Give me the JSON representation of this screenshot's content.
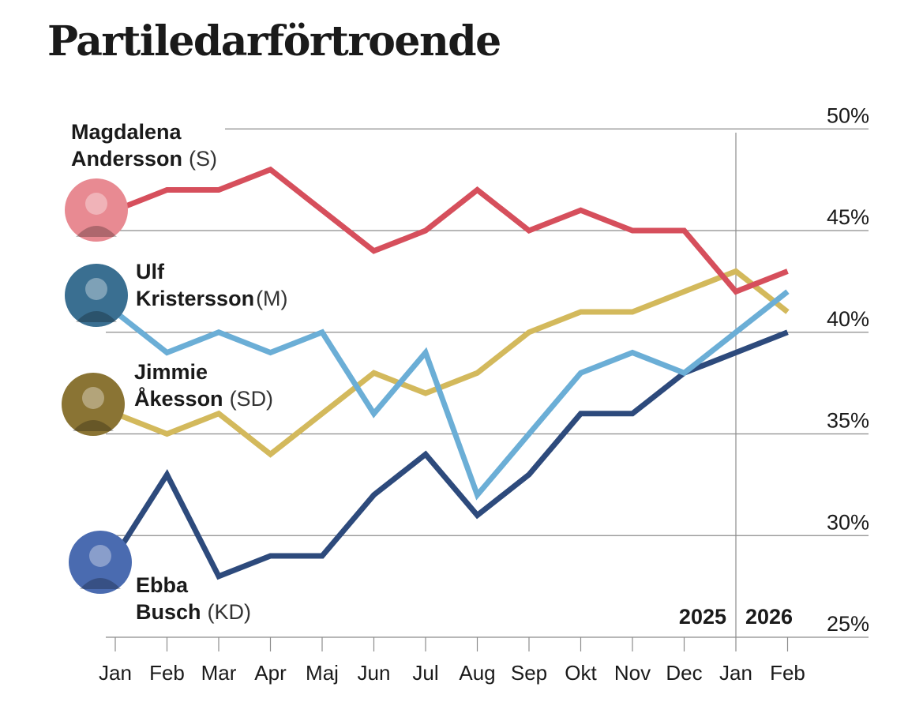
{
  "chart_data": {
    "type": "line",
    "title": "Partiledarförtroende",
    "x": [
      "Jan",
      "Feb",
      "Mar",
      "Apr",
      "Maj",
      "Jun",
      "Jul",
      "Aug",
      "Sep",
      "Okt",
      "Nov",
      "Dec",
      "Jan",
      "Feb"
    ],
    "years": [
      "2025",
      "2026"
    ],
    "yticks": [
      "25%",
      "30%",
      "35%",
      "40%",
      "45%",
      "50%"
    ],
    "ylim": [
      25,
      50
    ],
    "grid": true,
    "series": [
      {
        "name_line1": "Magdalena",
        "name_line2": "Andersson",
        "party": "(S)",
        "color": "#d64f5c",
        "portrait_color": "#e88a92",
        "values": [
          46,
          47,
          47,
          48,
          46,
          44,
          45,
          47,
          45,
          46,
          45,
          45,
          42,
          43
        ]
      },
      {
        "name_line1": "Ulf",
        "name_line2": "Kristersson",
        "party": "(M)",
        "color": "#6baed6",
        "portrait_color": "#3a6f91",
        "values": [
          41,
          39,
          40,
          39,
          40,
          36,
          39,
          32,
          35,
          38,
          39,
          38,
          40,
          42
        ]
      },
      {
        "name_line1": "Jimmie",
        "name_line2": "Åkesson",
        "party": "(SD)",
        "color": "#d3b95c",
        "portrait_color": "#8a7434",
        "values": [
          36,
          35,
          36,
          34,
          36,
          38,
          37,
          38,
          40,
          41,
          41,
          42,
          43,
          41
        ]
      },
      {
        "name_line1": "Ebba",
        "name_line2": "Busch",
        "party": "(KD)",
        "color": "#2d4a7c",
        "portrait_color": "#4a6bb0",
        "values": [
          29,
          33,
          28,
          29,
          29,
          32,
          34,
          31,
          33,
          36,
          36,
          38,
          39,
          40
        ]
      }
    ]
  }
}
